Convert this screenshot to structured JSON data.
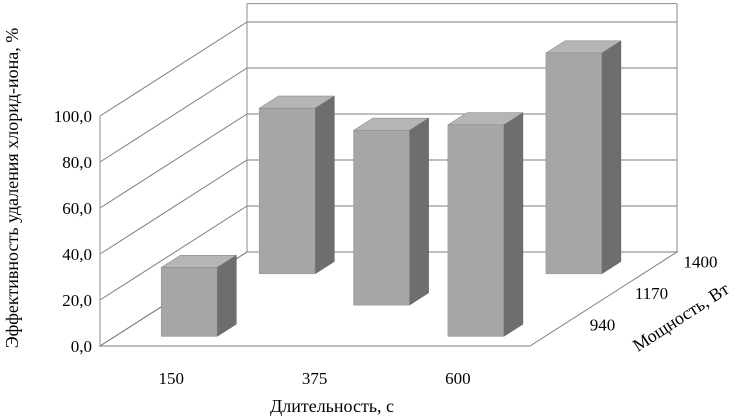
{
  "chart_data": {
    "type": "bar",
    "title": "",
    "xlabel": "Длительность, с",
    "ylabel": "Эффективность удаления  хлорид-иона, %",
    "zlabel": "Мощность, Вт",
    "x_categories": [
      "150",
      "375",
      "600"
    ],
    "z_categories": [
      "940",
      "1170",
      "1400"
    ],
    "y_ticks": [
      "0,0",
      "20,0",
      "40,0",
      "60,0",
      "80,0",
      "100,0"
    ],
    "ylim": [
      0,
      100
    ],
    "grid": true,
    "legend": "none",
    "bars": [
      {
        "duration": "150",
        "power": "940",
        "value": 30
      },
      {
        "duration": "150",
        "power": "1400",
        "value": 72
      },
      {
        "duration": "375",
        "power": "1170",
        "value": 76
      },
      {
        "duration": "600",
        "power": "940",
        "value": 92
      },
      {
        "duration": "600",
        "power": "1400",
        "value": 96
      }
    ]
  },
  "colors": {
    "bar_front": "#a6a6a6",
    "bar_top": "#b5b5b5",
    "bar_side": "#6e6e6e",
    "grid": "#7f7f7f",
    "text": "#000000"
  }
}
